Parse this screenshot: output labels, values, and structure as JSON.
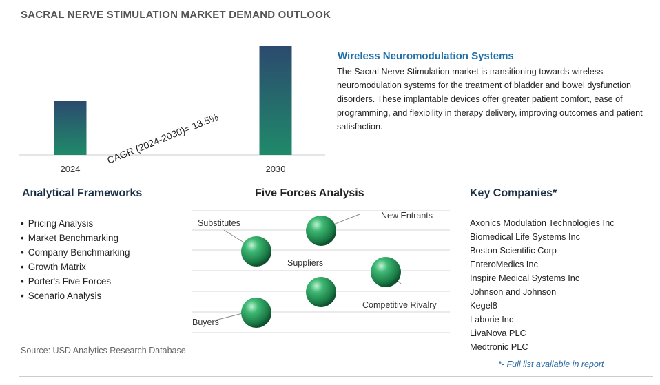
{
  "page": {
    "title": "SACRAL NERVE STIMULATION MARKET DEMAND OUTLOOK",
    "source": "Source: USD Analytics Research Database"
  },
  "chart_data": {
    "type": "bar",
    "categories": [
      "2024",
      "2030"
    ],
    "values": [
      1.0,
      2.0
    ],
    "values_note": "relative bar heights; no axis values printed",
    "annotation": "CAGR (2024-2030)=  13.5%",
    "bar_color_top": "#2c4a6e",
    "bar_color_bottom": "#1f8a6a"
  },
  "feature": {
    "title": "Wireless Neuromodulation Systems",
    "body": "The Sacral Nerve Stimulation market is transitioning towards wireless neuromodulation systems for the treatment of bladder and bowel dysfunction disorders. These implantable devices offer greater patient comfort, ease of programming, and flexibility in therapy delivery, improving outcomes and patient satisfaction."
  },
  "frameworks": {
    "heading": "Analytical Frameworks",
    "items": [
      "Pricing Analysis",
      "Market Benchmarking",
      "Company Benchmarking",
      "Growth Matrix",
      "Porter's Five Forces",
      "Scenario Analysis"
    ]
  },
  "forces": {
    "heading": "Five Forces Analysis",
    "labels": {
      "substitutes": "Substitutes",
      "new_entrants": "New Entrants",
      "suppliers": "Suppliers",
      "competitive_rivalry": "Competitive Rivalry",
      "buyers": "Buyers"
    },
    "sphere_color": "#1f8f55"
  },
  "companies": {
    "heading": "Key Companies*",
    "items": [
      "Axonics Modulation Technologies Inc",
      "Biomedical Life Systems Inc",
      "Boston Scientific Corp",
      "EnteroMedics Inc",
      "Inspire Medical Systems Inc",
      "Johnson and Johnson",
      "Kegel8",
      "Laborie Inc",
      "LivaNova PLC",
      "Medtronic PLC"
    ],
    "note": "*- Full list available in report"
  }
}
